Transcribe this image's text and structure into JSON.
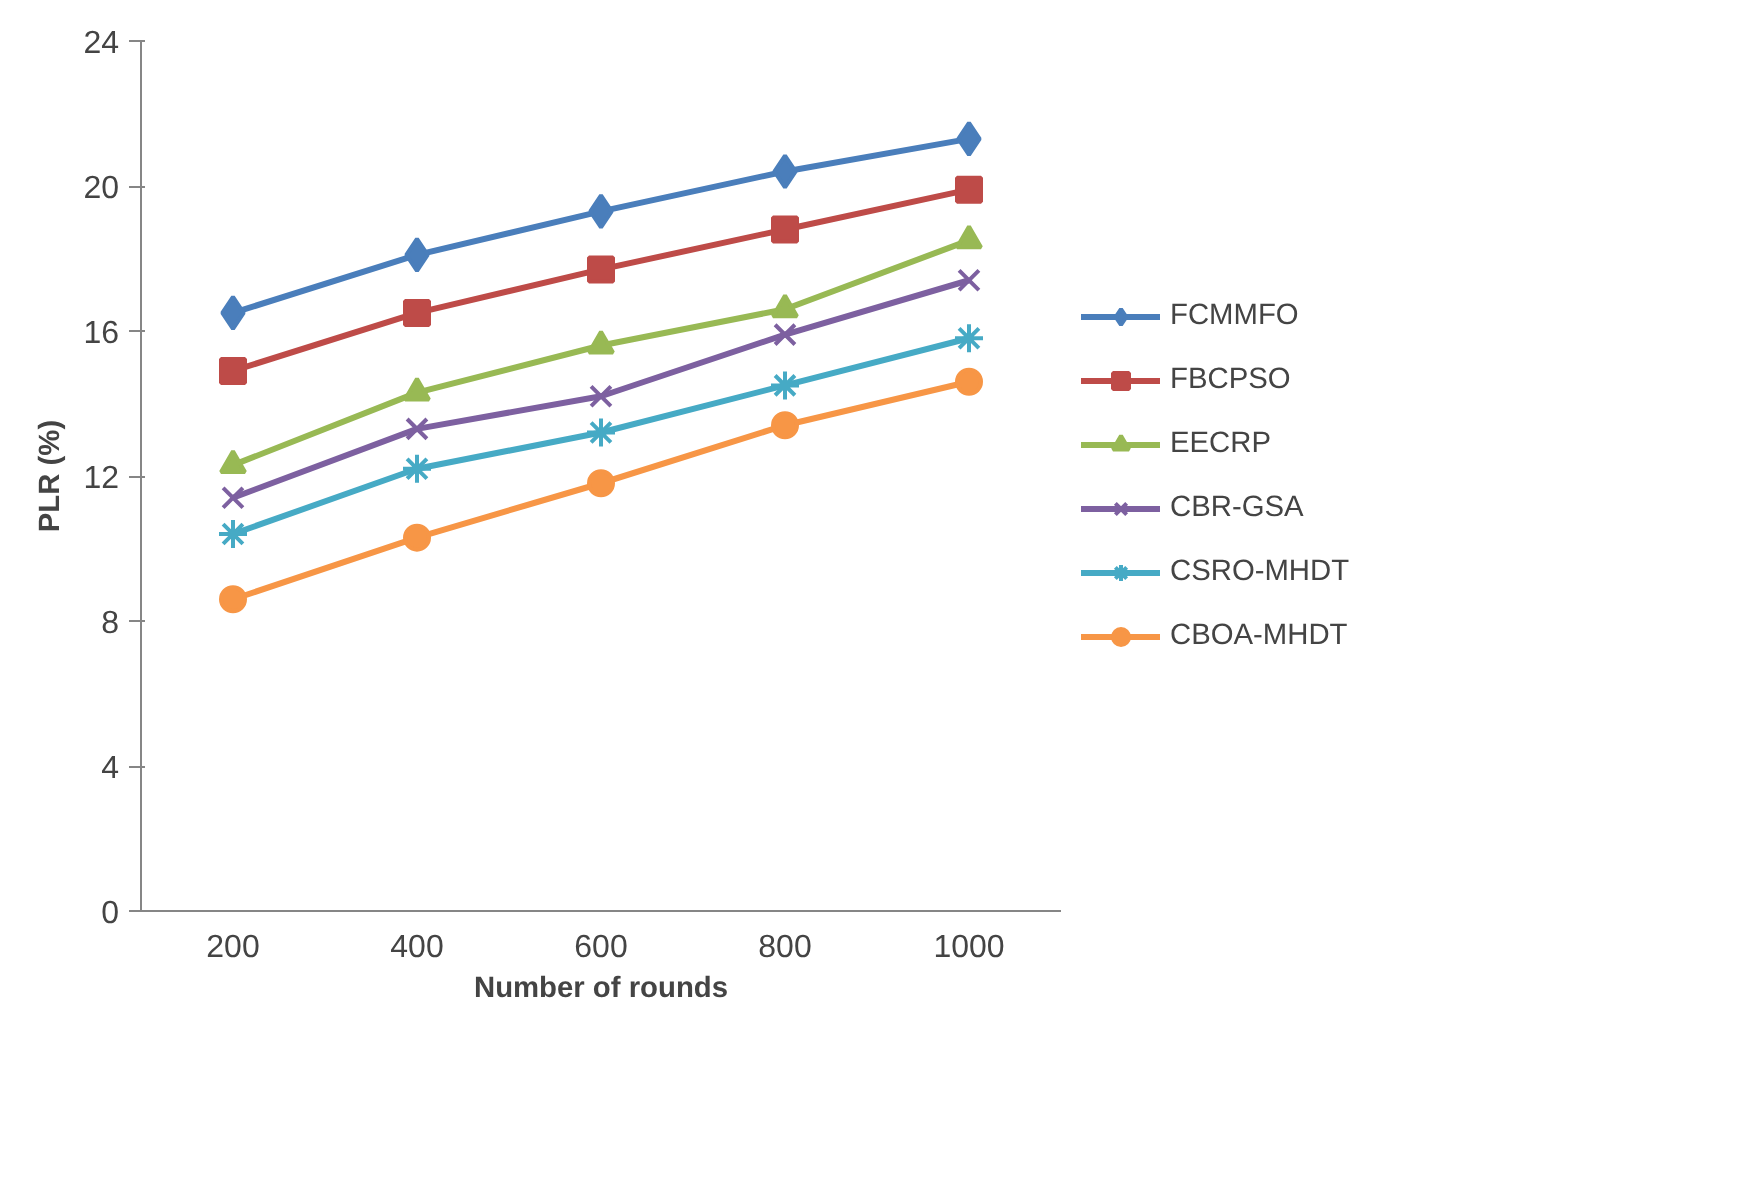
{
  "chart_data": {
    "type": "line",
    "xlabel": "Number of rounds",
    "ylabel": "PLR (%)",
    "categories": [
      "200",
      "400",
      "600",
      "800",
      "1000"
    ],
    "ylim": [
      0,
      24
    ],
    "yticks": [
      0,
      4,
      8,
      12,
      16,
      20,
      24
    ],
    "grid": false,
    "legend": "right",
    "line_style": "solid",
    "series": [
      {
        "name": "FCMMFO",
        "color": "#4a7ebb",
        "marker": "diamond",
        "values": [
          16.5,
          18.1,
          19.3,
          20.4,
          21.3
        ]
      },
      {
        "name": "FBCPSO",
        "color": "#be4b48",
        "marker": "square",
        "values": [
          14.9,
          16.5,
          17.7,
          18.8,
          19.9
        ]
      },
      {
        "name": "EECRP",
        "color": "#98b954",
        "marker": "triangle",
        "values": [
          12.3,
          14.3,
          15.6,
          16.6,
          18.5
        ]
      },
      {
        "name": "CBR-GSA",
        "color": "#7d60a0",
        "marker": "x",
        "values": [
          11.4,
          13.3,
          14.2,
          15.9,
          17.4
        ]
      },
      {
        "name": "CSRO-MHDT",
        "color": "#46aac5",
        "marker": "cross",
        "values": [
          10.4,
          12.2,
          13.2,
          14.5,
          15.8
        ]
      },
      {
        "name": "CBOA-MHDT",
        "color": "#f79646",
        "marker": "circle",
        "values": [
          8.6,
          10.3,
          11.8,
          13.4,
          14.6
        ]
      }
    ]
  }
}
